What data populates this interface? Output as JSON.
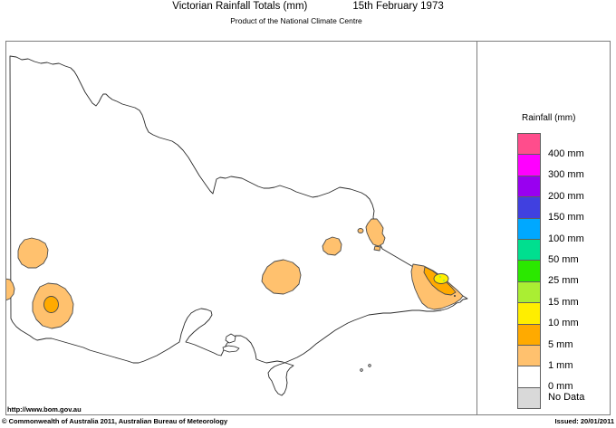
{
  "header": {
    "title": "Victorian Rainfall Totals (mm)",
    "date": "15th February 1973",
    "subtitle": "Product of the National Climate Centre"
  },
  "legend": {
    "title": "Rainfall (mm)",
    "entries": [
      {
        "label": "400 mm",
        "color": "#FF4D8C"
      },
      {
        "label": "300 mm",
        "color": "#FF00FF"
      },
      {
        "label": "200 mm",
        "color": "#9900F0"
      },
      {
        "label": "150 mm",
        "color": "#4040E0"
      },
      {
        "label": "100 mm",
        "color": "#00A8FF"
      },
      {
        "label": "50 mm",
        "color": "#00DF8F"
      },
      {
        "label": "25 mm",
        "color": "#2BE800"
      },
      {
        "label": "15 mm",
        "color": "#AAEE33"
      },
      {
        "label": "10 mm",
        "color": "#FFEE00"
      },
      {
        "label": "5 mm",
        "color": "#FFAA00"
      },
      {
        "label": "1 mm",
        "color": "#FFC16E"
      },
      {
        "label": "0 mm",
        "color": "#FFFFFF"
      },
      {
        "label": "No Data",
        "color": "#D9D9D9"
      }
    ]
  },
  "map": {
    "palette": {
      "light_orange": "#FFC16E",
      "orange": "#FFAA00",
      "yellow": "#FFEE00",
      "yellow_green": "#AAEE33",
      "island_fill": "#FFFFFF",
      "speck_dark": "#333333"
    },
    "regions": [
      {
        "id": "northwest-region",
        "rainfall_mm": "1-5"
      },
      {
        "id": "west-border-region",
        "rainfall_mm": "1-5"
      },
      {
        "id": "southwest-region",
        "rainfall_mm": "1-5",
        "core_mm": "5-10"
      },
      {
        "id": "central-region",
        "rainfall_mm": "1-5"
      },
      {
        "id": "north-central-region",
        "rainfall_mm": "1-5"
      },
      {
        "id": "northeast-region",
        "rainfall_mm": "1-5"
      },
      {
        "id": "east-gippsland-region",
        "rainfall_mm": "1-5",
        "core_mm": "5-10",
        "inner_mm": "10-15",
        "peak_mm": "15-25"
      }
    ]
  },
  "footer": {
    "url": "http://www.bom.gov.au",
    "copyright": "© Commonwealth of Australia 2011, Australian Bureau of Meteorology",
    "issued": "Issued: 20/01/2011"
  },
  "chart_data": {
    "type": "contour_rainfall_map",
    "region": "Victoria, Australia",
    "title": "Victorian Rainfall Totals (mm)",
    "date": "15th February 1973",
    "source": "Product of the National Climate Centre",
    "scale_levels_mm": [
      0,
      1,
      5,
      10,
      15,
      25,
      50,
      100,
      150,
      200,
      300,
      400
    ],
    "legend_position": "right",
    "observed_regions": [
      {
        "area": "north-west Victoria",
        "rainfall_mm": "1-5"
      },
      {
        "area": "western SA border",
        "rainfall_mm": "1-5"
      },
      {
        "area": "south-west Victoria",
        "rainfall_mm": "1-5",
        "core_mm": "5-10"
      },
      {
        "area": "central Victoria",
        "rainfall_mm": "1-5"
      },
      {
        "area": "north-central Victoria",
        "rainfall_mm": "1-5"
      },
      {
        "area": "north-east Victoria (upper Murray)",
        "rainfall_mm": "1-5"
      },
      {
        "area": "East Gippsland",
        "rainfall_mm": "1-5",
        "core_mm": "5-10",
        "inner_mm": "10-15",
        "peak_mm": "15-25"
      },
      {
        "area": "rest of state",
        "rainfall_mm": "0-1"
      }
    ]
  }
}
